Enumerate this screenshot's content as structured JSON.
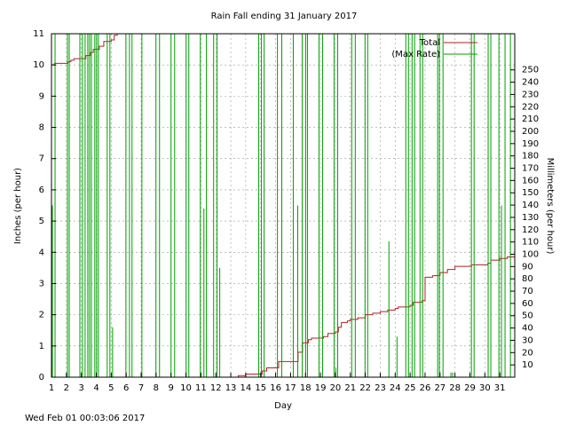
{
  "chart_data": {
    "type": "line",
    "title": "Rain Fall ending 31 January 2017",
    "x_label": "Day",
    "y_label": "Inches (per hour)",
    "y2_label": "Millimeters (per hour)",
    "footer": "Wed Feb 01 00:03:06 2017",
    "xlim": [
      1,
      32
    ],
    "xticks": [
      1,
      2,
      3,
      4,
      5,
      6,
      7,
      8,
      9,
      10,
      11,
      12,
      13,
      14,
      15,
      16,
      17,
      18,
      19,
      20,
      21,
      22,
      23,
      24,
      25,
      26,
      27,
      28,
      29,
      30,
      31
    ],
    "ylim": [
      0,
      11
    ],
    "yticks": [
      0,
      1,
      2,
      3,
      4,
      5,
      6,
      7,
      8,
      9,
      10,
      11
    ],
    "y2lim": [
      0,
      279.4
    ],
    "y2ticks": [
      10,
      20,
      30,
      40,
      50,
      60,
      70,
      80,
      90,
      100,
      110,
      120,
      130,
      140,
      150,
      160,
      170,
      180,
      190,
      200,
      210,
      220,
      230,
      240,
      250
    ],
    "grid": true,
    "legend": "top right",
    "series": [
      {
        "name": "Total",
        "color": "#b22222",
        "style": "steps",
        "x": [
          1,
          1.2,
          2,
          2.1,
          2.3,
          2.5,
          3,
          3.3,
          3.6,
          3.8,
          4.2,
          4.5,
          5,
          5.2,
          5.4,
          5.5,
          13,
          13.5,
          14,
          15,
          15.1,
          15.4,
          16,
          16.2,
          17.3,
          17.5,
          17.8,
          18.2,
          18.4,
          19.2,
          19.5,
          20,
          20.2,
          20.4,
          20.8,
          21,
          21.5,
          22,
          22.5,
          23,
          23.5,
          24,
          24.2,
          25,
          25.2,
          25.8,
          26,
          26.5,
          27,
          27.5,
          28,
          29.1,
          30.2,
          30.4,
          31,
          31.5,
          32
        ],
        "values": [
          10,
          10.05,
          10.05,
          10.1,
          10.15,
          10.2,
          10.2,
          10.3,
          10.4,
          10.5,
          10.6,
          10.75,
          10.8,
          10.95,
          11,
          null,
          0,
          0.05,
          0.1,
          0.1,
          0.2,
          0.3,
          0.3,
          0.5,
          0.5,
          0.8,
          1.1,
          1.2,
          1.25,
          1.3,
          1.4,
          1.45,
          1.6,
          1.75,
          1.8,
          1.85,
          1.9,
          2,
          2.05,
          2.1,
          2.15,
          2.2,
          2.25,
          2.3,
          2.4,
          2.45,
          3.2,
          3.25,
          3.35,
          3.45,
          3.55,
          3.6,
          3.65,
          3.75,
          3.8,
          3.85,
          3.95
        ]
      },
      {
        "name": "(Max Rate)",
        "color": "#00a000",
        "style": "impulses",
        "x": [
          1.06,
          1.24,
          2.07,
          2.19,
          2.9,
          3.07,
          3.25,
          3.43,
          3.55,
          3.67,
          3.9,
          4.02,
          4.14,
          4.73,
          4.91,
          5.09,
          5.98,
          6.22,
          6.39,
          7.05,
          7.99,
          8.23,
          9.0,
          9.24,
          10.01,
          10.19,
          10.96,
          11.2,
          11.37,
          11.85,
          12.08,
          12.26,
          14.87,
          15.05,
          15.23,
          16.12,
          16.41,
          17.18,
          17.48,
          17.78,
          18.01,
          18.13,
          18.9,
          19.14,
          19.91,
          20.03,
          20.15,
          21.09,
          21.33,
          21.98,
          22.16,
          23.58,
          24.12,
          24.71,
          24.89,
          25.13,
          25.3,
          25.66,
          25.84,
          26.84,
          26.96,
          27.2,
          27.73,
          27.85,
          29.1,
          29.28,
          30.22,
          30.4,
          30.94,
          31.11,
          31.35,
          31.71
        ],
        "values": [
          5.5,
          11,
          11,
          11,
          11,
          11,
          11,
          11,
          11,
          11,
          11,
          11,
          11,
          11,
          11,
          1.6,
          11,
          11,
          11,
          11,
          11,
          11,
          11,
          11,
          11,
          11,
          11,
          5.4,
          11,
          11,
          11,
          3.5,
          11,
          11,
          11,
          11,
          11,
          11,
          5.5,
          11,
          11,
          11,
          11,
          11,
          11,
          0.3,
          11,
          11,
          11,
          11,
          11,
          4.35,
          1.3,
          11,
          11,
          11,
          11,
          11,
          11,
          11,
          11,
          11,
          0.15,
          0.15,
          11,
          11,
          11,
          11,
          11,
          5.5,
          11,
          11
        ]
      }
    ]
  }
}
